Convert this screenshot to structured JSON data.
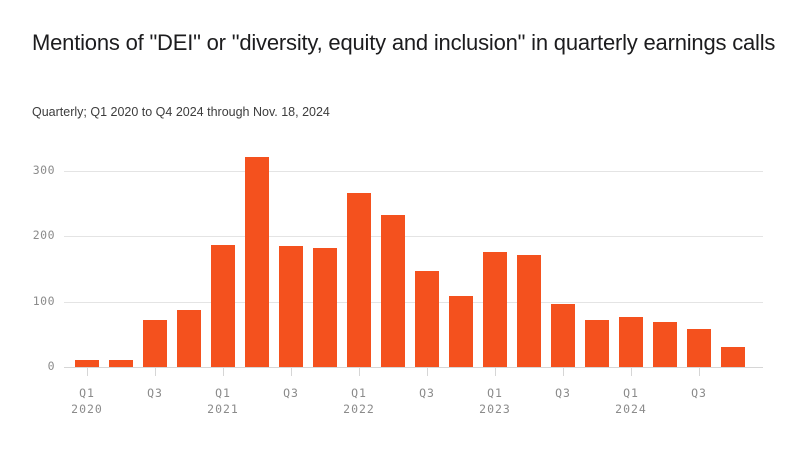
{
  "header": {
    "title": "Mentions of \"DEI\" or \"diversity, equity and inclusion\" in quarterly earnings calls",
    "subtitle": "Quarterly; Q1 2020 to Q4 2024 through Nov. 18, 2024"
  },
  "chart_data": {
    "type": "bar",
    "title": "Mentions of \"DEI\" or \"diversity, equity and inclusion\" in quarterly earnings calls",
    "subtitle": "Quarterly; Q1 2020 to Q4 2024 through Nov. 18, 2024",
    "categories": [
      "Q1 2020",
      "Q2 2020",
      "Q3 2020",
      "Q4 2020",
      "Q1 2021",
      "Q2 2021",
      "Q3 2021",
      "Q4 2021",
      "Q1 2022",
      "Q2 2022",
      "Q3 2022",
      "Q4 2022",
      "Q1 2023",
      "Q2 2023",
      "Q3 2023",
      "Q4 2023",
      "Q1 2024",
      "Q2 2024",
      "Q3 2024",
      "Q4 2024"
    ],
    "values": [
      10,
      10,
      72,
      87,
      187,
      320,
      185,
      182,
      266,
      232,
      147,
      108,
      176,
      171,
      96,
      72,
      77,
      69,
      58,
      30
    ],
    "xlabel": "",
    "ylabel": "",
    "ylim": [
      0,
      340
    ],
    "yticks": [
      0,
      100,
      200,
      300
    ],
    "x_tick_labels": [
      {
        "index": 0,
        "line1": "Q1",
        "line2": "2020"
      },
      {
        "index": 2,
        "line1": "Q3"
      },
      {
        "index": 4,
        "line1": "Q1",
        "line2": "2021"
      },
      {
        "index": 6,
        "line1": "Q3"
      },
      {
        "index": 8,
        "line1": "Q1",
        "line2": "2022"
      },
      {
        "index": 10,
        "line1": "Q3"
      },
      {
        "index": 12,
        "line1": "Q1",
        "line2": "2023"
      },
      {
        "index": 14,
        "line1": "Q3"
      },
      {
        "index": 16,
        "line1": "Q1",
        "line2": "2024"
      },
      {
        "index": 18,
        "line1": "Q3"
      }
    ],
    "grid": true,
    "legend": false,
    "bar_color": "#F4511E",
    "grid_color": "#E4E4E4",
    "axis_line_color": "#D6D6D6",
    "axis_label_color": "#8B8B8B"
  }
}
